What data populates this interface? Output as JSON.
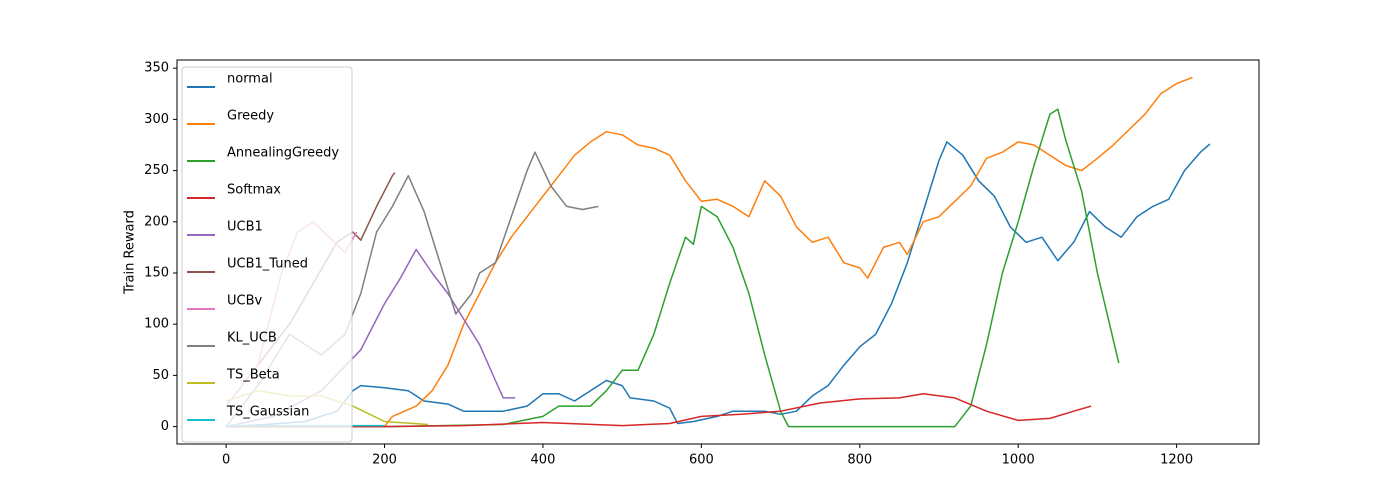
{
  "chart_data": {
    "type": "line",
    "ylabel": "Train Reward",
    "xlim": [
      -62,
      1304
    ],
    "ylim": [
      -17,
      358
    ],
    "xticks": [
      0,
      200,
      400,
      600,
      800,
      1000,
      1200
    ],
    "yticks": [
      0,
      50,
      100,
      150,
      200,
      250,
      300,
      350
    ],
    "legend": "upper left",
    "series": [
      {
        "name": "normal",
        "color": "#1f77b4",
        "x": [
          0,
          50,
          100,
          140,
          160,
          170,
          200,
          230,
          250,
          280,
          300,
          350,
          380,
          400,
          420,
          440,
          460,
          480,
          500,
          510,
          540,
          560,
          570,
          590,
          620,
          640,
          680,
          700,
          720,
          740,
          760,
          780,
          800,
          820,
          840,
          860,
          880,
          900,
          910,
          930,
          950,
          970,
          990,
          1010,
          1030,
          1050,
          1070,
          1090,
          1110,
          1130,
          1150,
          1170,
          1190,
          1210,
          1230,
          1242
        ],
        "values": [
          0,
          2,
          5,
          15,
          35,
          40,
          38,
          35,
          25,
          22,
          15,
          15,
          20,
          32,
          32,
          25,
          35,
          45,
          40,
          28,
          25,
          18,
          3,
          5,
          10,
          15,
          15,
          12,
          15,
          30,
          40,
          60,
          78,
          90,
          120,
          160,
          210,
          260,
          278,
          265,
          240,
          225,
          195,
          180,
          185,
          162,
          180,
          210,
          195,
          185,
          205,
          215,
          222,
          250,
          268,
          276
        ]
      },
      {
        "name": "Greedy",
        "color": "#ff7f0e",
        "x": [
          0,
          100,
          200,
          210,
          240,
          260,
          280,
          300,
          320,
          340,
          360,
          380,
          400,
          420,
          440,
          460,
          480,
          500,
          520,
          540,
          560,
          580,
          600,
          620,
          640,
          660,
          680,
          700,
          720,
          740,
          760,
          780,
          800,
          810,
          830,
          850,
          860,
          880,
          900,
          920,
          940,
          960,
          980,
          1000,
          1020,
          1040,
          1060,
          1080,
          1100,
          1120,
          1140,
          1160,
          1180,
          1200,
          1220
        ],
        "values": [
          0,
          0,
          0,
          10,
          20,
          35,
          60,
          100,
          130,
          160,
          185,
          205,
          225,
          245,
          265,
          278,
          288,
          285,
          275,
          272,
          265,
          240,
          220,
          222,
          215,
          205,
          240,
          225,
          195,
          180,
          185,
          160,
          155,
          145,
          175,
          180,
          168,
          200,
          205,
          220,
          235,
          262,
          268,
          278,
          275,
          265,
          255,
          250,
          262,
          275,
          290,
          305,
          325,
          335,
          341
        ]
      },
      {
        "name": "AnnealingGreedy",
        "color": "#2ca02c",
        "x": [
          0,
          200,
          350,
          400,
          420,
          460,
          480,
          500,
          520,
          540,
          560,
          580,
          590,
          600,
          620,
          640,
          660,
          680,
          700,
          710,
          800,
          920,
          940,
          960,
          980,
          1000,
          1020,
          1040,
          1050,
          1060,
          1080,
          1100,
          1127
        ],
        "values": [
          0,
          0,
          2,
          10,
          20,
          20,
          35,
          55,
          55,
          90,
          140,
          185,
          178,
          215,
          205,
          175,
          130,
          70,
          15,
          0,
          0,
          0,
          20,
          80,
          150,
          200,
          255,
          305,
          310,
          280,
          230,
          150,
          62
        ]
      },
      {
        "name": "Softmax",
        "color": "#d62728",
        "x": [
          0,
          200,
          300,
          400,
          500,
          560,
          600,
          650,
          700,
          750,
          800,
          850,
          880,
          920,
          960,
          1000,
          1040,
          1070,
          1092
        ],
        "values": [
          0,
          0,
          1,
          4,
          1,
          3,
          10,
          12,
          15,
          23,
          27,
          28,
          32,
          28,
          15,
          6,
          8,
          15,
          20
        ]
      },
      {
        "name": "UCB1",
        "color": "#9467bd",
        "x": [
          0,
          60,
          120,
          170,
          180,
          200,
          220,
          240,
          260,
          280,
          300,
          320,
          340,
          350,
          365
        ],
        "values": [
          0,
          10,
          35,
          75,
          90,
          120,
          145,
          173,
          150,
          130,
          105,
          80,
          45,
          28,
          28
        ]
      },
      {
        "name": "UCB1_Tuned",
        "color": "#8c564b",
        "x": [
          0,
          80,
          140,
          160,
          170,
          190,
          210,
          213
        ],
        "values": [
          20,
          100,
          180,
          190,
          182,
          215,
          245,
          248
        ]
      },
      {
        "name": "UCBv",
        "color": "#e377c2",
        "x": [
          0,
          40,
          70,
          90,
          110,
          130,
          150,
          165
        ],
        "values": [
          20,
          60,
          150,
          190,
          200,
          185,
          170,
          190
        ]
      },
      {
        "name": "KL_UCB",
        "color": "#7f7f7f",
        "x": [
          0,
          40,
          80,
          120,
          150,
          170,
          190,
          210,
          230,
          250,
          270,
          290,
          310,
          320,
          340,
          360,
          380,
          390,
          410,
          430,
          450,
          470
        ],
        "values": [
          0,
          40,
          90,
          70,
          90,
          130,
          190,
          215,
          245,
          210,
          160,
          110,
          130,
          150,
          160,
          205,
          250,
          268,
          235,
          215,
          212,
          215
        ]
      },
      {
        "name": "TS_Beta",
        "color": "#bcbd22",
        "x": [
          0,
          40,
          80,
          120,
          160,
          200,
          255
        ],
        "values": [
          25,
          35,
          30,
          30,
          20,
          5,
          2
        ]
      },
      {
        "name": "TS_Gaussian",
        "color": "#17becf",
        "x": [
          0,
          100,
          200
        ],
        "values": [
          1,
          1,
          1
        ]
      }
    ]
  }
}
